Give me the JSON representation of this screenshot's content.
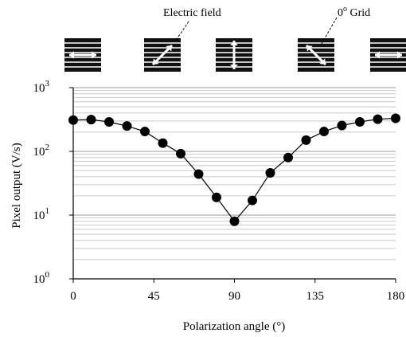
{
  "chart_data": {
    "type": "scatter",
    "xlabel": "Polarization angle (°)",
    "ylabel": "Pixel output (V/s)",
    "xlim": [
      0,
      180
    ],
    "ylim": [
      1,
      1000
    ],
    "yscale": "log",
    "xticks": [
      0,
      45,
      90,
      135,
      180
    ],
    "x_tick_labels": [
      "0",
      "45",
      "90",
      "135",
      "180"
    ],
    "y_tick_labels": [
      {
        "base": "10",
        "exp": "0"
      },
      {
        "base": "10",
        "exp": "1"
      },
      {
        "base": "10",
        "exp": "2"
      },
      {
        "base": "10",
        "exp": "3"
      }
    ],
    "grid": "horizontal minor (log)",
    "series": [
      {
        "marker": "circle",
        "line": true,
        "color": "#000000",
        "x": [
          0,
          10,
          20,
          30,
          40,
          50,
          60,
          70,
          80,
          90,
          100,
          110,
          120,
          130,
          140,
          150,
          160,
          170,
          180
        ],
        "y": [
          310,
          315,
          290,
          250,
          205,
          135,
          92,
          44,
          19,
          8,
          17,
          46,
          80,
          150,
          205,
          255,
          290,
          320,
          330
        ]
      }
    ],
    "annotations": {
      "electric_field": "Electric field",
      "grid": "0",
      "grid_sup": "o",
      "grid_suffix": " Grid"
    },
    "polarizer_icons": [
      {
        "grating": "horizontal",
        "arrow_angle_deg": 0
      },
      {
        "grating": "horizontal",
        "arrow_angle_deg": 45
      },
      {
        "grating": "horizontal",
        "arrow_angle_deg": 90
      },
      {
        "grating": "horizontal",
        "arrow_angle_deg": 135
      },
      {
        "grating": "horizontal",
        "arrow_angle_deg": 180
      }
    ]
  }
}
